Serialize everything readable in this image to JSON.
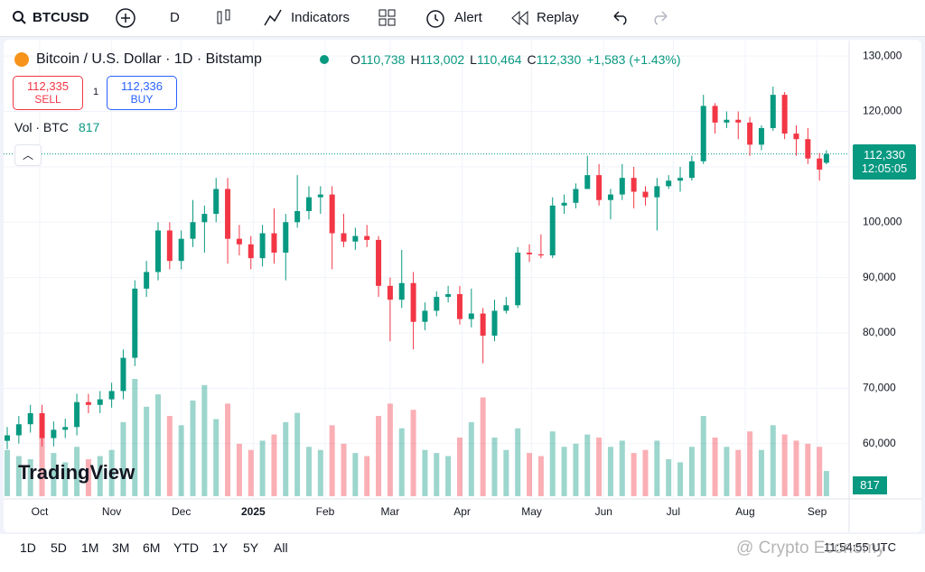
{
  "toolbar": {
    "symbol": "BTCUSD",
    "interval": "D",
    "indicators": "Indicators",
    "alert": "Alert",
    "replay": "Replay"
  },
  "chart_data": {
    "type": "candlestick",
    "title": "Bitcoin / U.S. Dollar · 1D · Bitstamp",
    "ohlc_legend": [
      {
        "prefix": "O",
        "text": "110,738"
      },
      {
        "prefix": "H",
        "text": "113,002"
      },
      {
        "prefix": "L",
        "text": "110,464"
      },
      {
        "prefix": "C",
        "text": "112,330"
      }
    ],
    "change_text": "+1,583 (+1.43%)",
    "sell": {
      "price": "112,335",
      "label": "SELL"
    },
    "spread": "1",
    "buy": {
      "price": "112,336",
      "label": "BUY"
    },
    "volume_title": "Vol · BTC",
    "volume_last": "817",
    "last_price": {
      "value": 112330,
      "label": "112,330",
      "countdown": "12:05:05"
    },
    "watermark": "TradingView",
    "x": [
      0,
      5,
      10,
      15,
      20,
      25,
      30,
      35,
      40,
      45,
      50,
      55,
      60,
      65,
      70,
      75,
      80,
      85,
      90,
      95,
      100,
      105,
      110,
      115,
      120,
      125,
      130,
      135,
      140,
      145,
      150,
      155,
      160,
      165,
      170,
      175,
      180,
      185,
      190,
      195,
      200,
      205,
      210,
      215,
      220,
      225,
      230,
      235,
      240,
      245,
      250,
      255,
      260,
      265,
      270,
      275,
      280,
      285,
      290,
      295,
      300,
      305,
      310,
      315,
      320,
      325,
      330,
      335,
      340,
      345,
      350,
      353
    ],
    "open": [
      60500,
      61500,
      63500,
      65500,
      61000,
      62500,
      63000,
      67500,
      67000,
      68000,
      69500,
      75500,
      88000,
      91000,
      98500,
      93000,
      97000,
      100000,
      101500,
      106000,
      97000,
      96000,
      93500,
      98000,
      94500,
      100000,
      102000,
      104500,
      105000,
      98000,
      96500,
      97500,
      96800,
      88500,
      86000,
      89000,
      82000,
      84000,
      86500,
      87000,
      82500,
      83500,
      79500,
      84000,
      85000,
      94500,
      94200,
      94000,
      103000,
      103500,
      106000,
      108500,
      104000,
      105000,
      108000,
      105500,
      104500,
      106500,
      107500,
      108000,
      111000,
      121000,
      118000,
      118500,
      118000,
      114000,
      117000,
      123000,
      116000,
      115000,
      111500,
      110738
    ],
    "high": [
      63000,
      65000,
      67000,
      67000,
      64000,
      64500,
      69000,
      69000,
      69500,
      71000,
      77000,
      89500,
      93000,
      100000,
      100000,
      98500,
      104000,
      103000,
      108000,
      108000,
      99500,
      97500,
      99500,
      102500,
      101500,
      108500,
      106500,
      106500,
      106500,
      101500,
      99000,
      99500,
      97500,
      90000,
      95000,
      91000,
      85500,
      87500,
      88500,
      88500,
      88000,
      84500,
      86000,
      86500,
      95500,
      96000,
      97800,
      104500,
      105000,
      107000,
      112000,
      110500,
      106000,
      110500,
      110000,
      106500,
      108000,
      108500,
      110000,
      112000,
      123000,
      121500,
      120000,
      120000,
      119000,
      117500,
      124500,
      123500,
      117500,
      117000,
      112500,
      113002
    ],
    "low": [
      59000,
      60000,
      62000,
      59500,
      59500,
      61000,
      61500,
      65500,
      65500,
      66500,
      68000,
      74000,
      86500,
      89500,
      91500,
      91500,
      95500,
      94500,
      100000,
      92500,
      94000,
      91500,
      92000,
      92500,
      89500,
      99000,
      100500,
      101500,
      91500,
      95500,
      95000,
      95500,
      86500,
      78500,
      84500,
      77000,
      80500,
      83000,
      85500,
      81500,
      81000,
      74500,
      78500,
      83500,
      84500,
      92800,
      93500,
      93500,
      101500,
      102500,
      106000,
      103000,
      100500,
      104000,
      102500,
      103000,
      98500,
      106000,
      105500,
      107500,
      110500,
      116000,
      117000,
      115000,
      112000,
      113000,
      116500,
      115000,
      112000,
      110500,
      107500,
      110464
    ],
    "close": [
      61500,
      63500,
      65500,
      61000,
      62500,
      63000,
      67500,
      67000,
      68000,
      69500,
      75500,
      88000,
      91000,
      98500,
      93000,
      97000,
      100000,
      101500,
      106000,
      97000,
      96000,
      93500,
      98000,
      94500,
      100000,
      102000,
      104500,
      105000,
      98000,
      96500,
      97500,
      96800,
      88500,
      86000,
      89000,
      82000,
      84000,
      86500,
      87000,
      82500,
      83500,
      79500,
      84000,
      85000,
      94500,
      94200,
      94000,
      103000,
      103500,
      106000,
      108500,
      104000,
      105000,
      108000,
      105500,
      104500,
      106500,
      107500,
      108000,
      111000,
      121000,
      118000,
      118500,
      118000,
      114000,
      117000,
      123000,
      116000,
      115000,
      111500,
      109500,
      112330
    ],
    "volume": [
      1500,
      1300,
      1200,
      1900,
      1400,
      1100,
      1600,
      1200,
      1300,
      1500,
      2400,
      3800,
      2900,
      3300,
      2600,
      2300,
      3100,
      3600,
      2500,
      3000,
      1700,
      1500,
      1800,
      2000,
      2400,
      2700,
      1600,
      1500,
      2300,
      1700,
      1400,
      1300,
      2600,
      3000,
      2200,
      2800,
      1500,
      1400,
      1300,
      1900,
      2400,
      3200,
      1900,
      1500,
      2200,
      1400,
      1300,
      2100,
      1600,
      1700,
      2000,
      1900,
      1600,
      1800,
      1400,
      1500,
      1800,
      1200,
      1100,
      1600,
      2600,
      1900,
      1600,
      1500,
      2100,
      1500,
      2300,
      2000,
      1800,
      1700,
      1600,
      817
    ],
    "xlim": [
      0,
      362
    ],
    "xticks": [
      {
        "value": 14,
        "label": "Oct"
      },
      {
        "value": 45,
        "label": "Nov"
      },
      {
        "value": 75,
        "label": "Dec"
      },
      {
        "value": 106,
        "label": "2025"
      },
      {
        "value": 137,
        "label": "Feb"
      },
      {
        "value": 165,
        "label": "Mar"
      },
      {
        "value": 196,
        "label": "Apr"
      },
      {
        "value": 226,
        "label": "May"
      },
      {
        "value": 257,
        "label": "Jun"
      },
      {
        "value": 287,
        "label": "Jul"
      },
      {
        "value": 318,
        "label": "Aug"
      },
      {
        "value": 349,
        "label": "Sep"
      }
    ],
    "ylim": [
      50500,
      132800
    ],
    "yticks": [
      {
        "value": 60000,
        "label": "60,000"
      },
      {
        "value": 70000,
        "label": "70,000"
      },
      {
        "value": 80000,
        "label": "80,000"
      },
      {
        "value": 90000,
        "label": "90,000"
      },
      {
        "value": 100000,
        "label": "100,000"
      },
      {
        "value": 110000,
        "label": "110,000"
      },
      {
        "value": 120000,
        "label": "120,000"
      },
      {
        "value": 130000,
        "label": "130,000"
      }
    ],
    "grid": true,
    "up_color": "#089981",
    "down_color": "#f23645"
  },
  "bottom_bar": {
    "ranges": [
      "1D",
      "5D",
      "1M",
      "3M",
      "6M",
      "YTD",
      "1Y",
      "5Y",
      "All"
    ],
    "time": "11:54:55 UTC"
  },
  "overlay": {
    "watermark": "@ Crypto Economy"
  }
}
